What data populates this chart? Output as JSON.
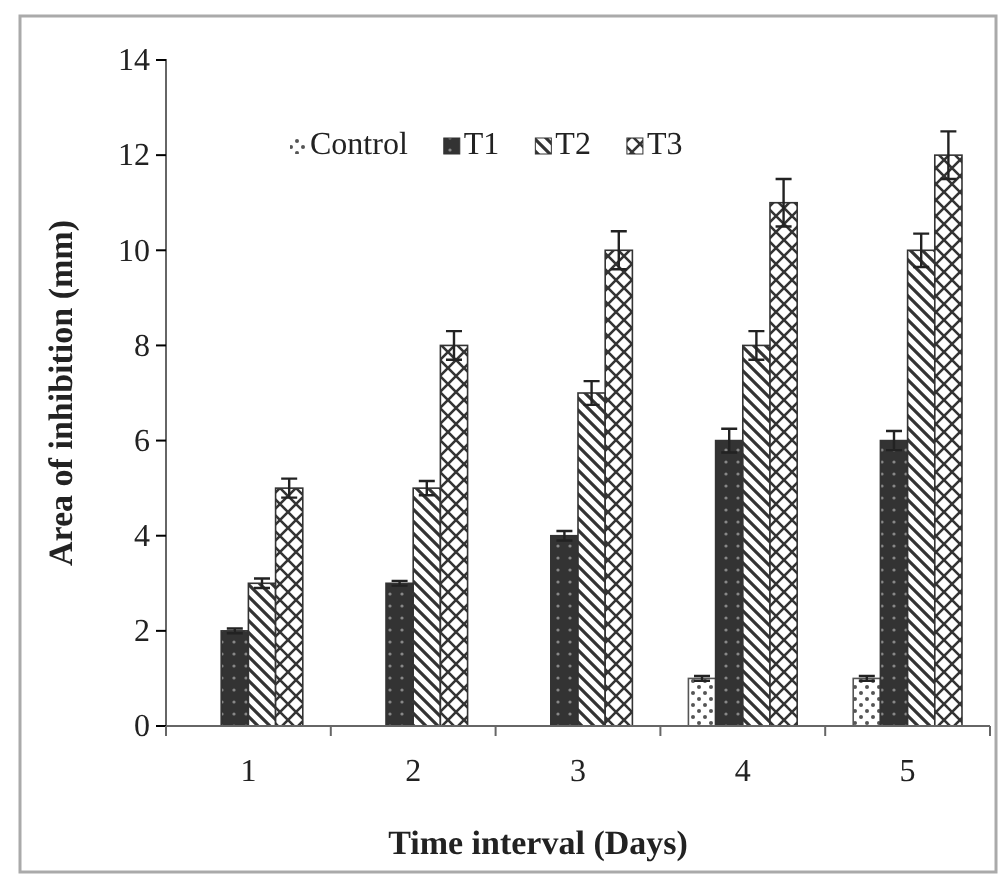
{
  "chart_data": {
    "type": "bar",
    "xlabel": "Time interval  (Days)",
    "ylabel": "Area of inhibition  (mm)",
    "categories": [
      "1",
      "2",
      "3",
      "4",
      "5"
    ],
    "series": [
      {
        "name": "Control",
        "color": "#555555",
        "values": [
          0,
          0,
          0,
          1,
          1
        ],
        "errors": [
          null,
          null,
          null,
          0.05,
          0.05
        ]
      },
      {
        "name": "T1",
        "color": "#333333",
        "values": [
          2,
          3,
          4,
          6,
          6
        ],
        "errors": [
          0.05,
          0.05,
          0.1,
          0.25,
          0.2
        ]
      },
      {
        "name": "T2",
        "color": "#333333",
        "values": [
          3,
          5,
          7,
          8,
          10
        ],
        "errors": [
          0.1,
          0.15,
          0.25,
          0.3,
          0.35
        ]
      },
      {
        "name": "T3",
        "color": "#333333",
        "values": [
          5,
          8,
          10,
          11,
          12
        ],
        "errors": [
          0.2,
          0.3,
          0.4,
          0.5,
          0.5
        ]
      }
    ],
    "ylim": [
      0,
      14
    ],
    "yticks": [
      0,
      2,
      4,
      6,
      8,
      10,
      12,
      14
    ],
    "legend": "top"
  }
}
